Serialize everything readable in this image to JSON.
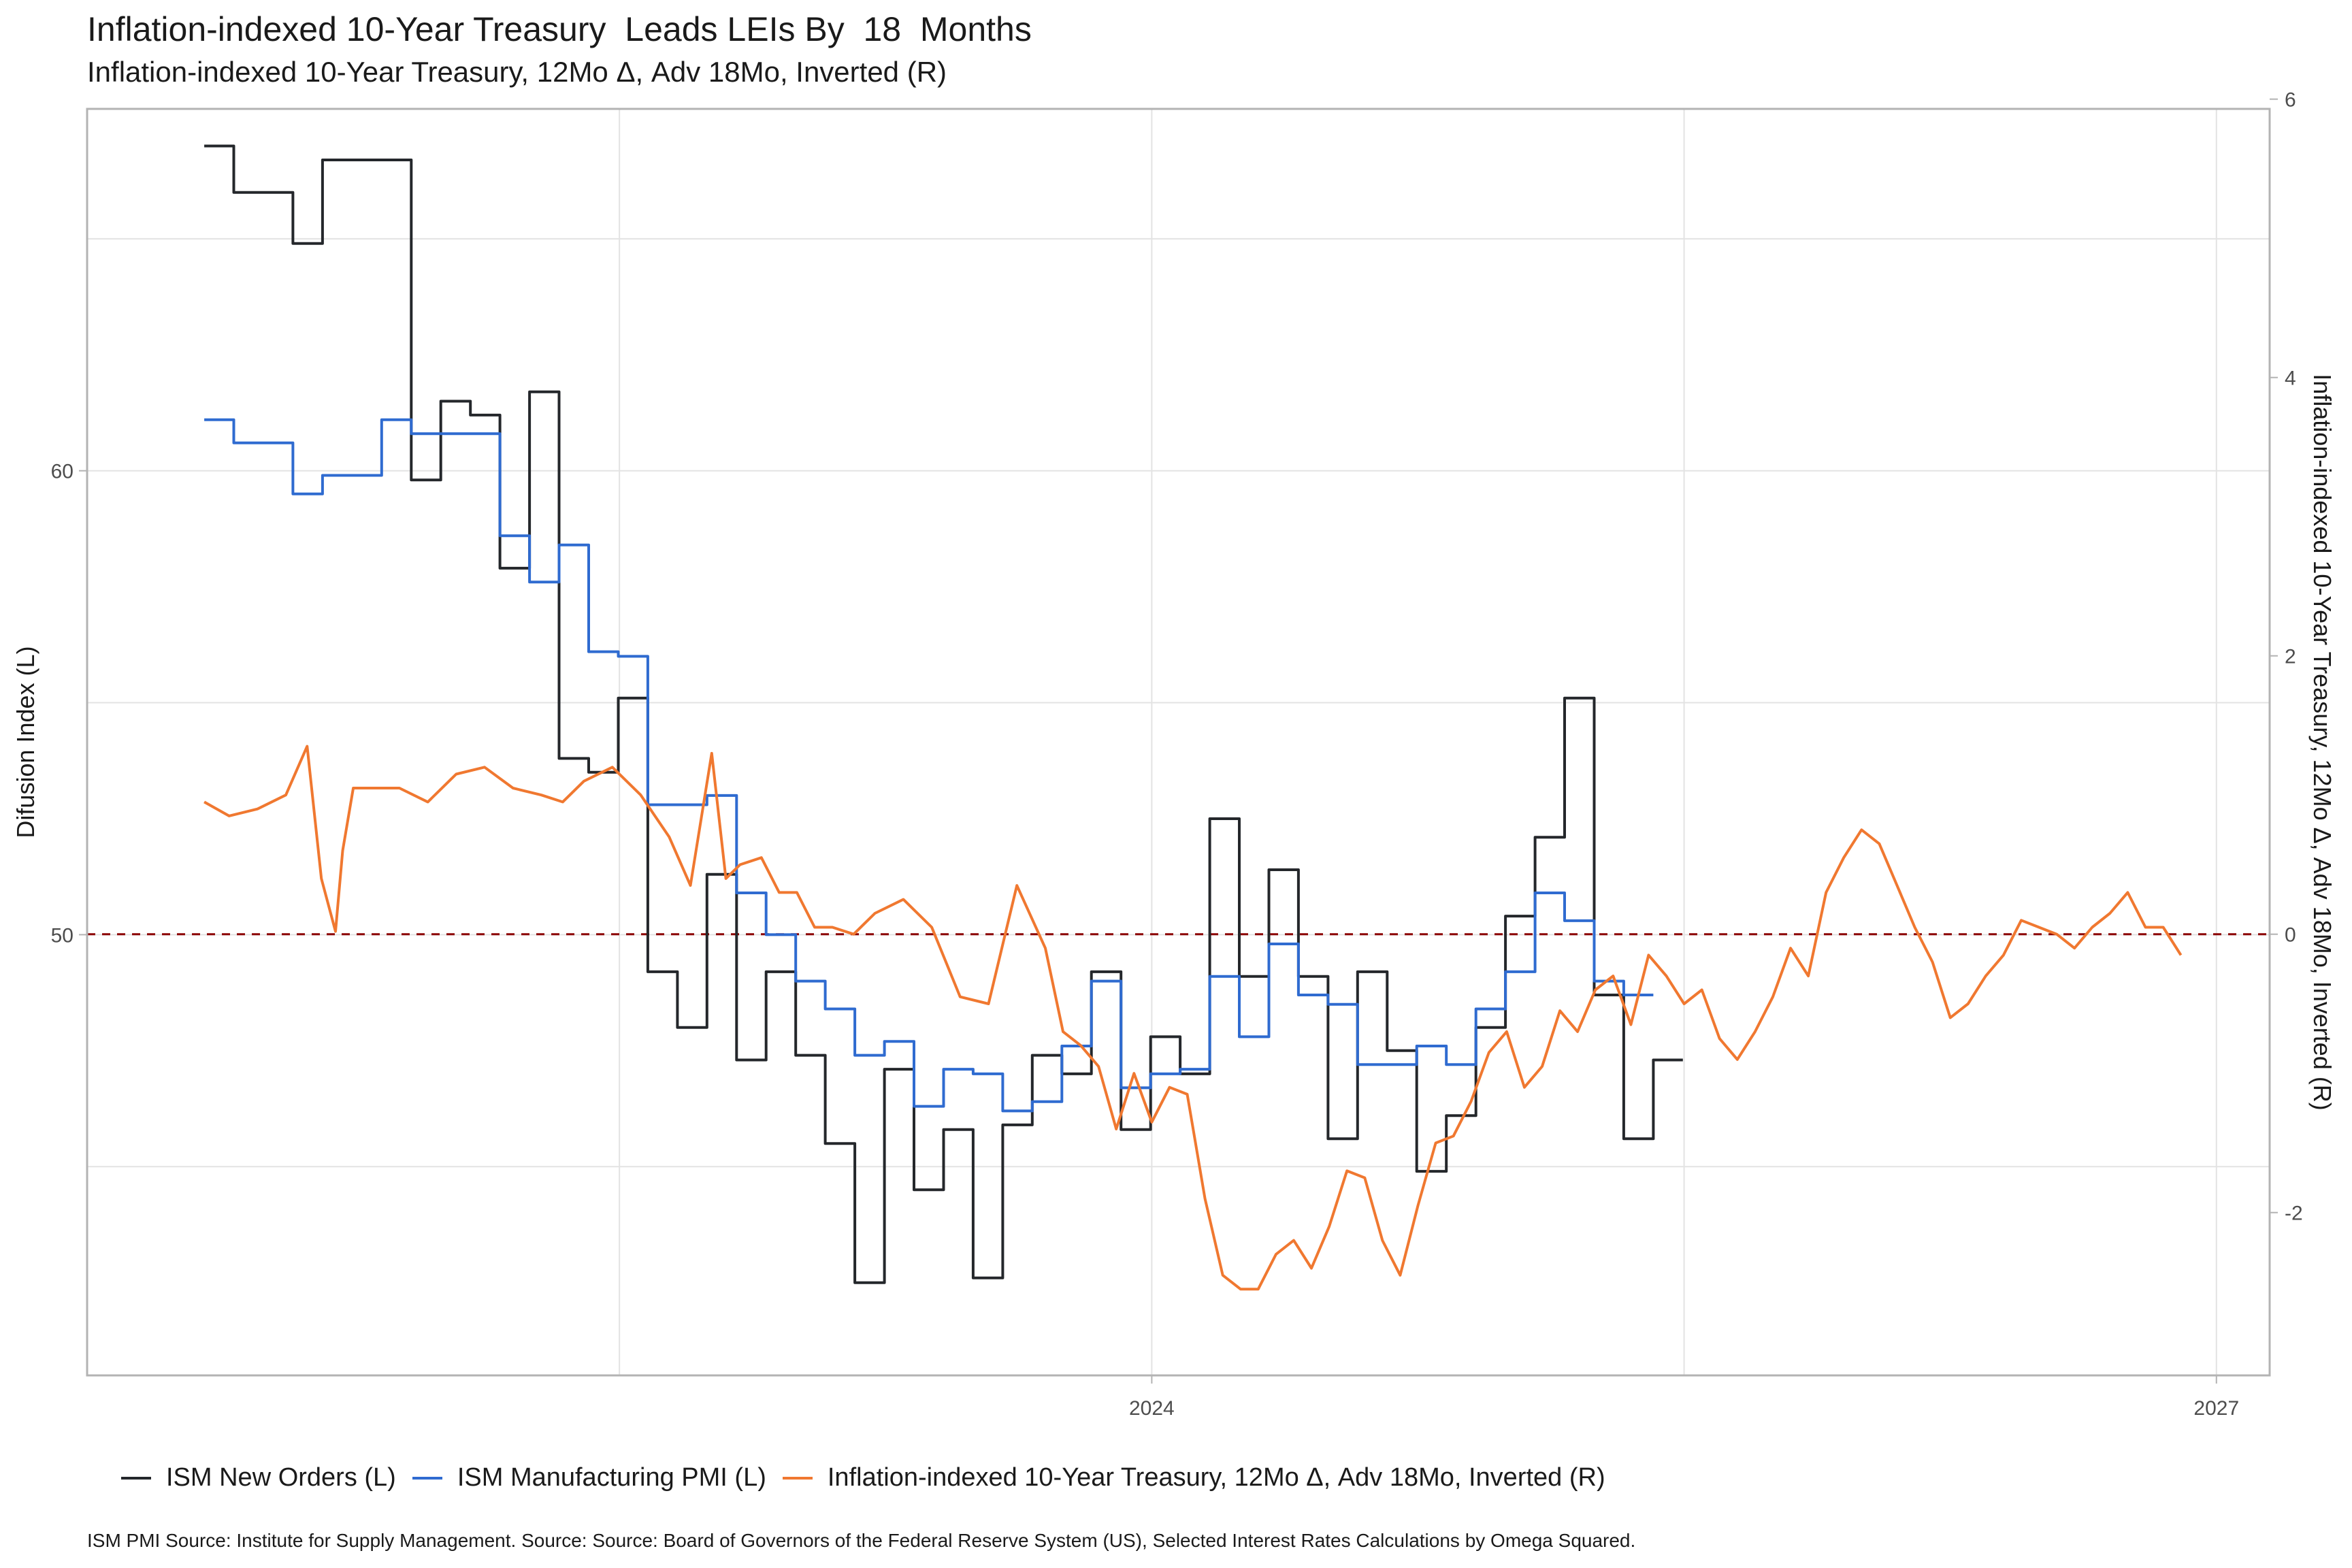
{
  "colors": {
    "new_orders": "#24272b",
    "pmi": "#2f6bd0",
    "tips": "#f07830",
    "reference_line": "#8b0000",
    "grid": "#e3e3e3",
    "panel_border": "#b3b3b3"
  },
  "chart_data": {
    "type": "line",
    "title": "Inflation-indexed 10-Year Treasury  Leads LEIs By  18  Months",
    "subtitle": "Inflation-indexed 10-Year Treasury, 12Mo Δ, Adv 18Mo, Inverted (R)",
    "ylabel_left": "Difusion Index (L)",
    "ylabel_right": "Inflation-indexed 10-Year Treasury, 12Mo Δ, Adv 18Mo, Inverted (R)",
    "xlabel": "",
    "xlim": [
      2021.0,
      2027.15
    ],
    "ylim_left": [
      40.5,
      67.8
    ],
    "ylim_right": [
      -3.17,
      5.93
    ],
    "x_ticks": [
      2024,
      2027
    ],
    "x_tick_labels": [
      "2024",
      "2027"
    ],
    "y_left_ticks": [
      50,
      60
    ],
    "y_left_tick_labels": [
      "50",
      "60"
    ],
    "y_right_ticks": [
      -2,
      0,
      2,
      4,
      6
    ],
    "y_right_tick_labels": [
      "-2",
      "0",
      "2",
      "4",
      "6"
    ],
    "reference_line": {
      "axis": "right",
      "value": 0
    },
    "grid": true,
    "legend_position": "bottom",
    "series": [
      {
        "name": "ISM New Orders (L)",
        "axis": "left",
        "step": true,
        "x_start": 2021.33,
        "x_step_months": 1,
        "values": [
          67.0,
          66.0,
          66.0,
          64.9,
          66.7,
          66.7,
          66.7,
          59.8,
          61.5,
          61.2,
          57.9,
          61.7,
          53.8,
          53.5,
          55.1,
          49.2,
          48.0,
          51.3,
          47.3,
          49.2,
          47.4,
          45.5,
          42.5,
          47.1,
          44.5,
          45.8,
          42.6,
          45.9,
          47.4,
          47.0,
          49.2,
          45.8,
          47.8,
          47.0,
          52.5,
          49.1,
          51.4,
          49.1,
          45.6,
          49.2,
          47.5,
          44.9,
          46.1,
          48.0,
          50.4,
          52.1,
          55.1,
          48.7,
          45.6,
          47.3
        ]
      },
      {
        "name": "ISM Manufacturing PMI (L)",
        "axis": "left",
        "step": true,
        "x_start": 2021.33,
        "x_step_months": 1,
        "values": [
          61.1,
          60.6,
          60.6,
          59.5,
          59.9,
          59.9,
          61.1,
          60.8,
          60.8,
          60.8,
          58.6,
          57.6,
          58.4,
          56.1,
          56.0,
          52.8,
          52.8,
          53.0,
          50.9,
          50.0,
          49.0,
          48.4,
          47.4,
          47.7,
          46.3,
          47.1,
          47.0,
          46.2,
          46.4,
          47.6,
          49.0,
          46.7,
          47.0,
          47.1,
          49.1,
          47.8,
          49.8,
          48.7,
          48.5,
          47.2,
          47.2,
          47.6,
          47.2,
          48.4,
          49.2,
          50.9,
          50.3,
          49.0,
          48.7
        ]
      },
      {
        "name": "Inflation-indexed 10-Year Treasury, 12Mo Δ, Adv 18Mo, Inverted (R)",
        "axis": "right",
        "step": false,
        "x": [
          2021.33,
          2021.4,
          2021.48,
          2021.56,
          2021.62,
          2021.66,
          2021.7,
          2021.72,
          2021.75,
          2021.8,
          2021.88,
          2021.96,
          2022.04,
          2022.12,
          2022.2,
          2022.28,
          2022.34,
          2022.4,
          2022.48,
          2022.56,
          2022.64,
          2022.7,
          2022.76,
          2022.8,
          2022.84,
          2022.9,
          2022.95,
          2023.0,
          2023.05,
          2023.1,
          2023.16,
          2023.22,
          2023.3,
          2023.38,
          2023.46,
          2023.54,
          2023.62,
          2023.7,
          2023.75,
          2023.8,
          2023.85,
          2023.9,
          2023.95,
          2024.0,
          2024.05,
          2024.1,
          2024.15,
          2024.2,
          2024.25,
          2024.3,
          2024.35,
          2024.4,
          2024.45,
          2024.5,
          2024.55,
          2024.6,
          2024.65,
          2024.7,
          2024.75,
          2024.8,
          2024.85,
          2024.9,
          2024.95,
          2025.0,
          2025.05,
          2025.1,
          2025.15,
          2025.2,
          2025.25,
          2025.3,
          2025.35,
          2025.4,
          2025.45,
          2025.5,
          2025.55,
          2025.6,
          2025.65,
          2025.7,
          2025.75,
          2025.8,
          2025.85,
          2025.9,
          2025.95,
          2026.0,
          2026.05,
          2026.1,
          2026.15,
          2026.2,
          2026.25,
          2026.3,
          2026.35,
          2026.4,
          2026.45,
          2026.5,
          2026.55,
          2026.6,
          2026.65,
          2026.7,
          2026.75,
          2026.8,
          2026.85,
          2026.9
        ],
        "values": [
          0.95,
          0.85,
          0.9,
          1.0,
          1.35,
          0.4,
          0.02,
          0.6,
          1.05,
          1.05,
          1.05,
          0.95,
          1.15,
          1.2,
          1.05,
          1.0,
          0.95,
          1.1,
          1.2,
          1.0,
          0.7,
          0.35,
          1.3,
          0.4,
          0.5,
          0.55,
          0.3,
          0.3,
          0.05,
          0.05,
          0.0,
          0.15,
          0.25,
          0.05,
          -0.45,
          -0.5,
          0.35,
          -0.1,
          -0.7,
          -0.8,
          -0.95,
          -1.4,
          -1.0,
          -1.35,
          -1.1,
          -1.15,
          -1.9,
          -2.45,
          -2.55,
          -2.55,
          -2.3,
          -2.2,
          -2.4,
          -2.1,
          -1.7,
          -1.75,
          -2.2,
          -2.45,
          -1.95,
          -1.5,
          -1.45,
          -1.2,
          -0.85,
          -0.7,
          -1.1,
          -0.95,
          -0.55,
          -0.7,
          -0.4,
          -0.3,
          -0.65,
          -0.15,
          -0.3,
          -0.5,
          -0.4,
          -0.75,
          -0.9,
          -0.7,
          -0.45,
          -0.1,
          -0.3,
          0.3,
          0.55,
          0.75,
          0.65,
          0.35,
          0.05,
          -0.2,
          -0.6,
          -0.5,
          -0.3,
          -0.15,
          0.1,
          0.05,
          0.0,
          -0.1,
          0.05,
          0.15,
          0.3,
          0.05,
          0.05,
          -0.15
        ]
      }
    ],
    "caption": "ISM PMI Source: Institute for Supply Management. Source: Source: Board of Governors of the Federal Reserve System (US), Selected Interest Rates Calculations by Omega Squared."
  },
  "legend": {
    "items": [
      {
        "label": "ISM New Orders (L)"
      },
      {
        "label": "ISM Manufacturing PMI (L)"
      },
      {
        "label": "Inflation-indexed 10-Year Treasury, 12Mo Δ, Adv 18Mo, Inverted (R)"
      }
    ]
  }
}
